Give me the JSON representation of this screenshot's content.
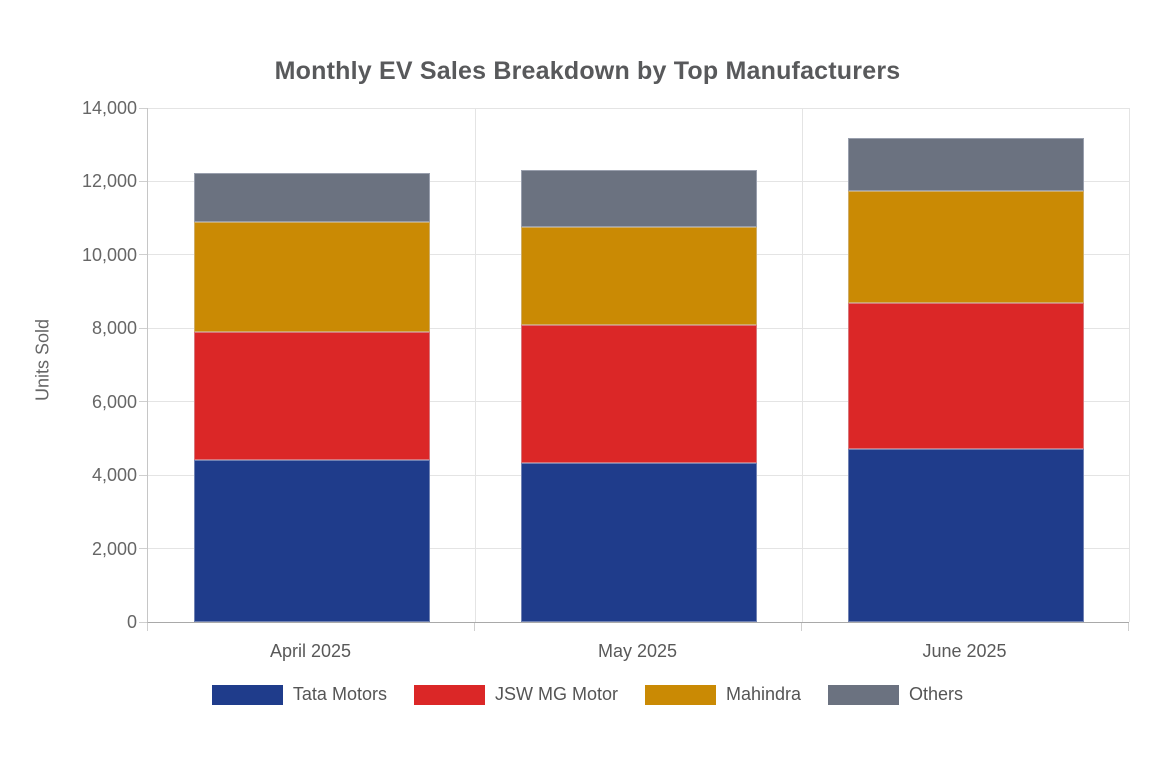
{
  "chart_data": {
    "type": "bar",
    "stacked": true,
    "title": "Monthly EV Sales Breakdown by Top Manufacturers",
    "xlabel": "",
    "ylabel": "Units Sold",
    "categories": [
      "April 2025",
      "May 2025",
      "June 2025"
    ],
    "series": [
      {
        "name": "Tata Motors",
        "color": "#1F3C8B",
        "values": [
          4400,
          4340,
          4700
        ]
      },
      {
        "name": "JSW MG Motor",
        "color": "#DB2727",
        "values": [
          3500,
          3760,
          3990
        ]
      },
      {
        "name": "Mahindra",
        "color": "#CA8A04",
        "values": [
          3000,
          2670,
          3040
        ]
      },
      {
        "name": "Others",
        "color": "#6B7280",
        "values": [
          1340,
          1530,
          1450
        ]
      }
    ],
    "stack_totals": [
      12240,
      12300,
      13180
    ],
    "ylim": [
      0,
      14000
    ],
    "ytick_step": 2000,
    "ytick_labels": [
      "0",
      "2,000",
      "4,000",
      "6,000",
      "8,000",
      "10,000",
      "12,000",
      "14,000"
    ],
    "grid": true,
    "legend_position": "bottom"
  },
  "style_colors": {
    "title_text": "#58595B",
    "tick_text": "#666666",
    "category_text": "#595959",
    "legend_text": "#555555",
    "gridline": "#E4E4E4",
    "axis_line": "#A9A9A9",
    "background": "#FFFFFF"
  }
}
